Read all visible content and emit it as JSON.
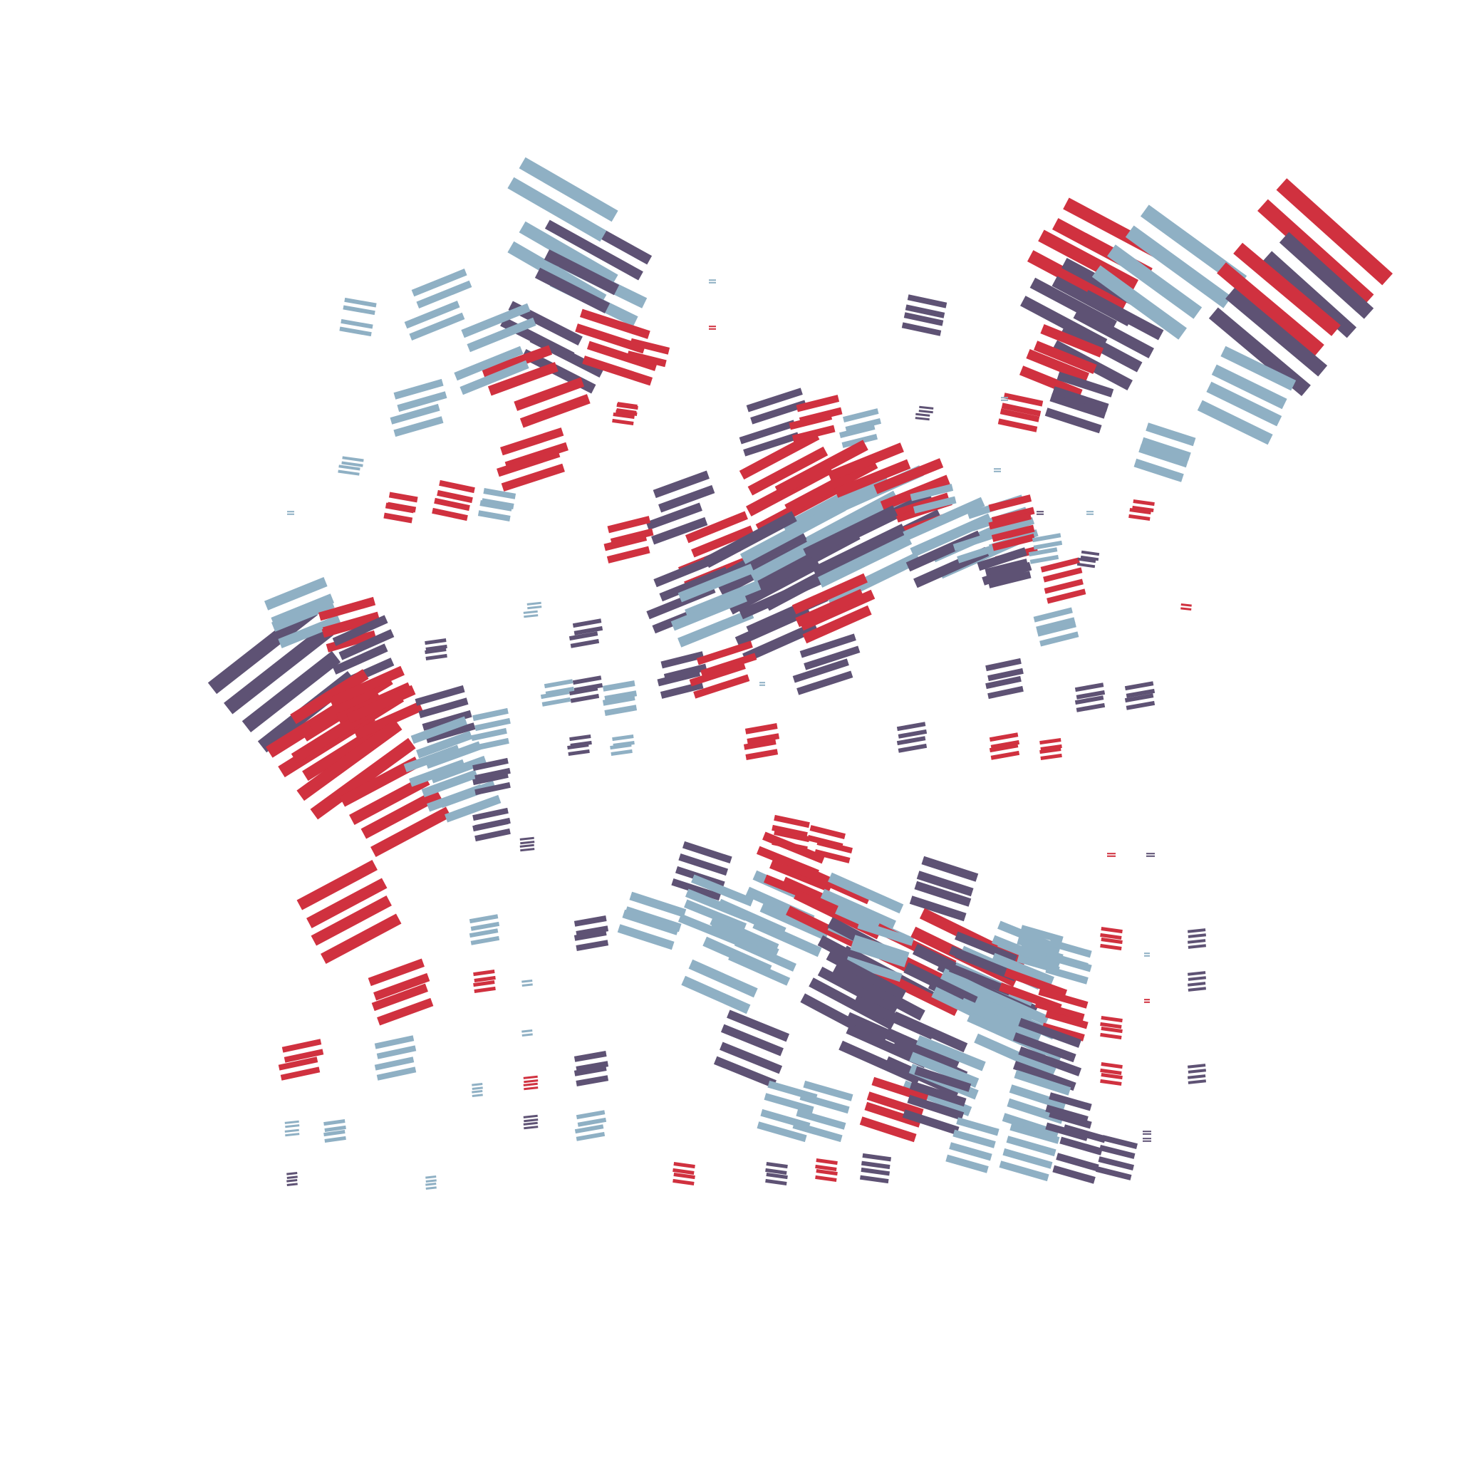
{
  "artwork": {
    "palette": {
      "red": "#d0313f",
      "purple": "#5e5274",
      "blue": "#8fb0c4",
      "background": "#ffffff"
    },
    "pair_gap": 0.8
  }
}
